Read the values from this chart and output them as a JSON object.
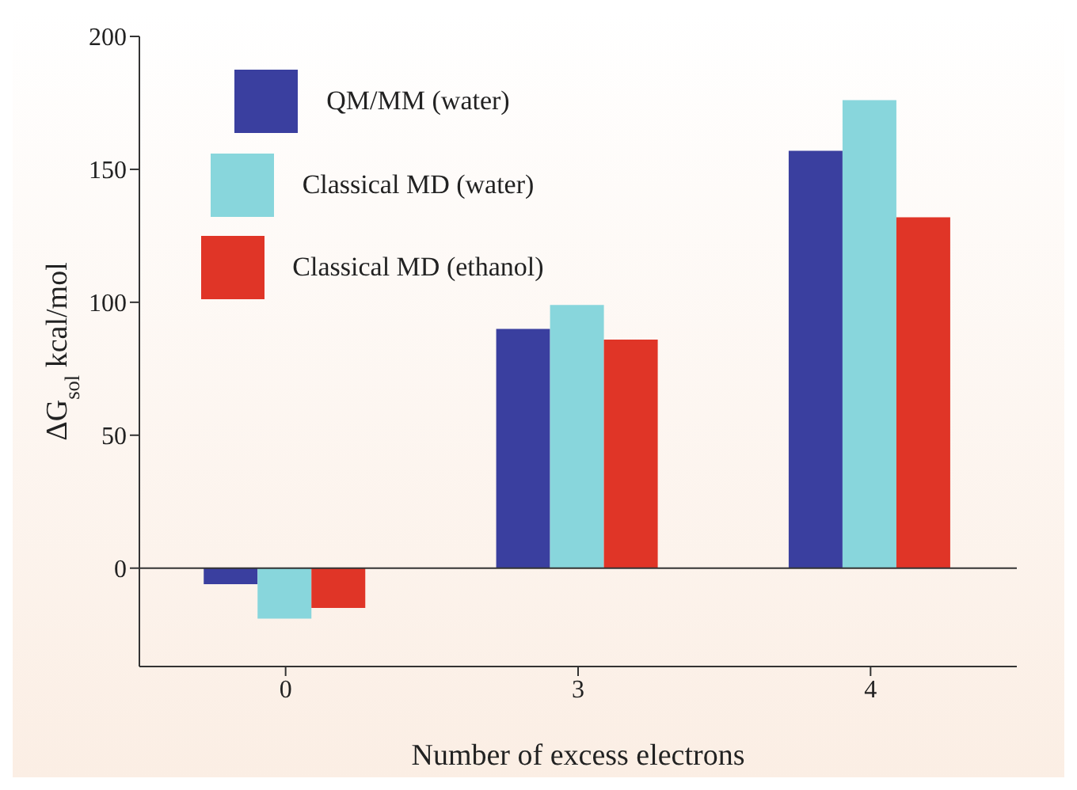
{
  "chart_data": {
    "type": "bar",
    "xlabel": "Number of excess electrons",
    "ylabel": "ΔG$_{sol}$  kcal/mol",
    "categories": [
      "0",
      "3",
      "4"
    ],
    "series": [
      {
        "name": "QM/MM (water)",
        "color": "#3a3f9f",
        "values": [
          -6,
          90,
          157
        ]
      },
      {
        "name": "Classical MD (water)",
        "color": "#88d6dc",
        "values": [
          -19,
          99,
          176
        ]
      },
      {
        "name": "Classical MD (ethanol)",
        "color": "#e03527",
        "values": [
          -15,
          86,
          132
        ]
      }
    ],
    "ylim": [
      -37,
      200
    ],
    "yticks": [
      0,
      50,
      100,
      150,
      200
    ],
    "grid": false,
    "legend": "top left",
    "ref_lines": [
      {
        "axis": "y",
        "value": 0
      }
    ]
  }
}
